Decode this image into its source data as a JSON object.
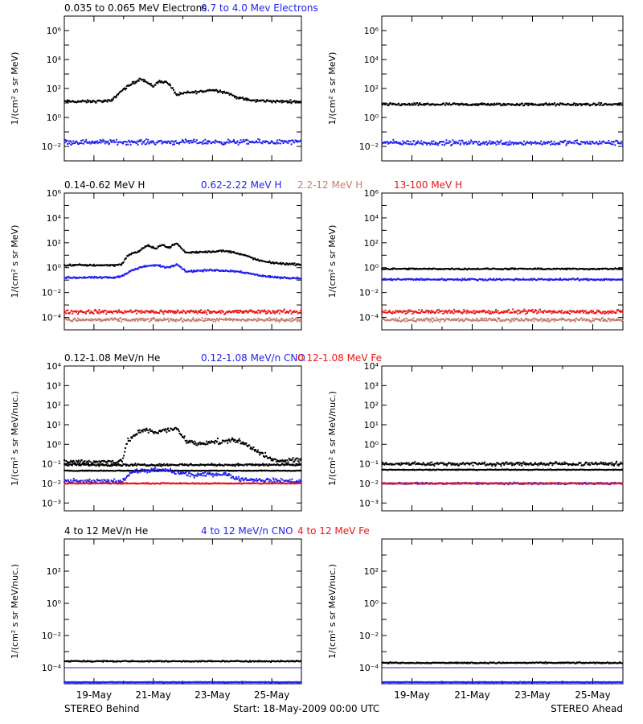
{
  "colors": {
    "black": "#000000",
    "blue": "#1f1ff0",
    "red": "#e81818",
    "tan": "#c08070"
  },
  "figure": {
    "left_footer": "STEREO Behind",
    "center_footer": "Start: 18-May-2009 00:00 UTC",
    "right_footer": "STEREO Ahead",
    "x_ticks": [
      "19-May",
      "21-May",
      "23-May",
      "25-May"
    ]
  },
  "chart_data": [
    {
      "type": "scatter",
      "row": 0,
      "side": "behind",
      "ylabel": "1/(cm² s sr MeV)",
      "y_scale": "log",
      "ylim_exp": [
        -3,
        7
      ],
      "y_tick_labels": [
        "10⁻²",
        "10⁰",
        "10²",
        "10⁴",
        "10⁶"
      ],
      "y_tick_exps": [
        -2,
        0,
        2,
        4,
        6
      ],
      "legend": [
        {
          "label": "0.035 to 0.065 MeV Electrons",
          "color": "#000000"
        },
        {
          "label": "0.7 to 4.0 Mev Electrons",
          "color": "#1f1ff0"
        }
      ],
      "series": [
        {
          "color": "#000000",
          "x": [
            0,
            0.9,
            1.6,
            1.9,
            2.3,
            2.6,
            2.8,
            3.0,
            3.2,
            3.5,
            3.8,
            4.1,
            4.4,
            4.7,
            4.9,
            5.2,
            5.5,
            5.8,
            6.1,
            6.4,
            6.8,
            7.2,
            7.6,
            8.0
          ],
          "log_y": [
            1.1,
            1.1,
            1.15,
            1.8,
            2.35,
            2.7,
            2.4,
            2.15,
            2.5,
            2.4,
            1.55,
            1.7,
            1.75,
            1.8,
            1.9,
            1.85,
            1.7,
            1.4,
            1.25,
            1.15,
            1.15,
            1.1,
            1.1,
            1.1
          ],
          "noise": 0.1
        },
        {
          "color": "#1f1ff0",
          "x": [
            0,
            8
          ],
          "log_y": [
            -1.7,
            -1.7
          ],
          "noise": 0.18
        }
      ]
    },
    {
      "type": "scatter",
      "row": 0,
      "side": "ahead",
      "ylabel": "1/(cm² s sr MeV)",
      "y_scale": "log",
      "ylim_exp": [
        -3,
        7
      ],
      "y_tick_labels": [
        "10⁻²",
        "10⁰",
        "10²",
        "10⁴",
        "10⁶"
      ],
      "y_tick_exps": [
        -2,
        0,
        2,
        4,
        6
      ],
      "legend": [],
      "series": [
        {
          "color": "#000000",
          "x": [
            0,
            8
          ],
          "log_y": [
            0.9,
            0.9
          ],
          "noise": 0.1
        },
        {
          "color": "#1f1ff0",
          "x": [
            0,
            8
          ],
          "log_y": [
            -1.75,
            -1.75
          ],
          "noise": 0.18
        }
      ]
    },
    {
      "type": "scatter",
      "row": 1,
      "side": "behind",
      "ylabel": "1/(cm² s sr MeV)",
      "y_scale": "log",
      "ylim_exp": [
        -5,
        6
      ],
      "y_tick_labels": [
        "10⁻⁴",
        "10⁻²",
        "10⁰",
        "10²",
        "10⁴",
        "10⁶"
      ],
      "y_tick_exps": [
        -4,
        -2,
        0,
        2,
        4,
        6
      ],
      "legend": [
        {
          "label": "0.14-0.62 MeV H",
          "color": "#000000"
        },
        {
          "label": "0.62-2.22 MeV H",
          "color": "#1f1ff0"
        },
        {
          "label": "2.2-12 MeV H",
          "color": "#c08070"
        },
        {
          "label": "13-100 MeV H",
          "color": "#e81818"
        }
      ],
      "series": [
        {
          "color": "#000000",
          "x": [
            0,
            1.7,
            1.95,
            2.15,
            2.5,
            2.8,
            3.1,
            3.3,
            3.5,
            3.8,
            4.1,
            5.0,
            5.4,
            5.8,
            6.2,
            6.6,
            7.0,
            7.5,
            8.0
          ],
          "log_y": [
            0.2,
            0.2,
            0.3,
            1.0,
            1.3,
            1.8,
            1.5,
            1.9,
            1.6,
            1.95,
            1.2,
            1.3,
            1.35,
            1.2,
            0.9,
            0.55,
            0.4,
            0.3,
            0.25
          ],
          "noise": 0.08
        },
        {
          "color": "#1f1ff0",
          "x": [
            0,
            1.7,
            2.0,
            2.3,
            2.7,
            3.1,
            3.5,
            3.8,
            4.1,
            5.0,
            5.5,
            5.9,
            6.3,
            6.8,
            7.3,
            8.0
          ],
          "log_y": [
            -0.8,
            -0.8,
            -0.6,
            -0.2,
            0.1,
            0.2,
            0.0,
            0.3,
            -0.3,
            -0.2,
            -0.25,
            -0.3,
            -0.5,
            -0.7,
            -0.8,
            -0.85
          ],
          "noise": 0.08
        },
        {
          "color": "#c08070",
          "x": [
            0,
            8
          ],
          "log_y": [
            -4.2,
            -4.2
          ],
          "noise": 0.15
        },
        {
          "color": "#e81818",
          "x": [
            0,
            8
          ],
          "log_y": [
            -3.55,
            -3.55
          ],
          "noise": 0.18
        }
      ]
    },
    {
      "type": "scatter",
      "row": 1,
      "side": "ahead",
      "ylabel": "1/(cm² s sr MeV)",
      "y_scale": "log",
      "ylim_exp": [
        -5,
        6
      ],
      "y_tick_labels": [
        "10⁻⁴",
        "10⁻²",
        "10⁰",
        "10²",
        "10⁴",
        "10⁶"
      ],
      "y_tick_exps": [
        -4,
        -2,
        0,
        2,
        4,
        6
      ],
      "legend": [],
      "series": [
        {
          "color": "#000000",
          "x": [
            0,
            8
          ],
          "log_y": [
            -0.1,
            -0.1
          ],
          "noise": 0.06
        },
        {
          "color": "#1f1ff0",
          "x": [
            0,
            8
          ],
          "log_y": [
            -0.95,
            -0.95
          ],
          "noise": 0.08
        },
        {
          "color": "#c08070",
          "x": [
            0,
            8
          ],
          "log_y": [
            -4.2,
            -4.2
          ],
          "noise": 0.15
        },
        {
          "color": "#e81818",
          "x": [
            0,
            8
          ],
          "log_y": [
            -3.55,
            -3.55
          ],
          "noise": 0.18
        }
      ]
    },
    {
      "type": "scatter",
      "row": 2,
      "side": "behind",
      "ylabel": "1/(cm² s sr MeV/nuc.)",
      "y_scale": "log",
      "ylim_exp": [
        -3.4,
        4
      ],
      "y_tick_labels": [
        "10⁻³",
        "10⁻²",
        "10⁻¹",
        "10⁰",
        "10¹",
        "10²",
        "10³",
        "10⁴"
      ],
      "y_tick_exps": [
        -3,
        -2,
        -1,
        0,
        1,
        2,
        3,
        4
      ],
      "legend": [
        {
          "label": "0.12-1.08 MeV/n He",
          "color": "#000000"
        },
        {
          "label": "0.12-1.08 MeV/n CNO",
          "color": "#1f1ff0"
        },
        {
          "label": "0.12-1.08 MeV Fe",
          "color": "#e81818"
        }
      ],
      "series": [
        {
          "color": "#000000",
          "x": [
            0,
            1.7,
            1.95,
            2.15,
            2.5,
            2.8,
            3.1,
            3.4,
            3.8,
            4.1,
            4.5,
            4.9,
            5.3,
            5.7,
            6.1,
            6.5,
            6.9,
            7.3,
            7.6,
            8.0
          ],
          "log_y": [
            -0.9,
            -0.9,
            -0.8,
            0.2,
            0.6,
            0.75,
            0.6,
            0.7,
            0.8,
            0.2,
            0.0,
            0.15,
            0.1,
            0.25,
            0.0,
            -0.3,
            -0.75,
            -0.9,
            -0.8,
            -0.8
          ],
          "noise": 0.14
        },
        {
          "color": "#000000",
          "x": [
            0,
            8
          ],
          "log_y": [
            -1.35,
            -1.35
          ],
          "noise": 0.02
        },
        {
          "color": "#000000",
          "x": [
            0,
            8
          ],
          "log_y": [
            -1.05,
            -1.05
          ],
          "noise": 0.06
        },
        {
          "color": "#1f1ff0",
          "x": [
            0,
            1.9,
            2.3,
            3.3,
            3.8,
            4.5,
            5.0,
            5.5,
            6.0,
            8.0
          ],
          "log_y": [
            -1.9,
            -1.9,
            -1.4,
            -1.3,
            -1.45,
            -1.6,
            -1.5,
            -1.55,
            -1.8,
            -1.9
          ],
          "noise": 0.12
        },
        {
          "color": "#e81818",
          "x": [
            0,
            8
          ],
          "log_y": [
            -2.0,
            -2.0
          ],
          "noise": 0.03
        }
      ]
    },
    {
      "type": "scatter",
      "row": 2,
      "side": "ahead",
      "ylabel": "1/(cm² s sr MeV/nuc.)",
      "y_scale": "log",
      "ylim_exp": [
        -3.4,
        4
      ],
      "y_tick_labels": [
        "10⁻³",
        "10⁻²",
        "10⁻¹",
        "10⁰",
        "10¹",
        "10²",
        "10³",
        "10⁴"
      ],
      "y_tick_exps": [
        -3,
        -2,
        -1,
        0,
        1,
        2,
        3,
        4
      ],
      "legend": [],
      "series": [
        {
          "color": "#000000",
          "x": [
            0,
            8
          ],
          "log_y": [
            -1.3,
            -1.3
          ],
          "noise": 0.02
        },
        {
          "color": "#000000",
          "x": [
            0,
            8
          ],
          "log_y": [
            -1.0,
            -1.0
          ],
          "noise": 0.1
        },
        {
          "color": "#1f1ff0",
          "x": [
            0,
            8
          ],
          "log_y": [
            -2.0,
            -2.0
          ],
          "noise": 0.05
        },
        {
          "color": "#e81818",
          "x": [
            0,
            8
          ],
          "log_y": [
            -2.0,
            -2.0
          ],
          "noise": 0.03
        }
      ]
    },
    {
      "type": "scatter",
      "row": 3,
      "side": "behind",
      "ylabel": "1/(cm² s sr MeV/nuc.)",
      "y_scale": "log",
      "ylim_exp": [
        -5,
        4
      ],
      "y_tick_labels": [
        "10⁻⁴",
        "10⁻²",
        "10⁰",
        "10²"
      ],
      "y_tick_exps": [
        -4,
        -2,
        0,
        2
      ],
      "legend": [
        {
          "label": "4 to 12 MeV/n He",
          "color": "#000000"
        },
        {
          "label": "4 to 12 MeV/n CNO",
          "color": "#1f1ff0"
        },
        {
          "label": "4 to 12 MeV Fe",
          "color": "#e81818"
        }
      ],
      "series": [
        {
          "color": "#000000",
          "x": [
            0,
            8
          ],
          "log_y": [
            -3.6,
            -3.6
          ],
          "noise": 0.04
        },
        {
          "color": "#1f1ff0",
          "x": [
            0,
            8
          ],
          "log_y": [
            -4.0,
            -4.0
          ],
          "noise": 0.0
        },
        {
          "color": "#1f1ff0",
          "x": [
            0,
            8
          ],
          "log_y": [
            -4.9,
            -4.9
          ],
          "noise": 0.02
        }
      ]
    },
    {
      "type": "scatter",
      "row": 3,
      "side": "ahead",
      "ylabel": "1/(cm² s sr MeV/nuc.)",
      "y_scale": "log",
      "ylim_exp": [
        -5,
        4
      ],
      "y_tick_labels": [
        "10⁻⁴",
        "10⁻²",
        "10⁰",
        "10²"
      ],
      "y_tick_exps": [
        -4,
        -2,
        0,
        2
      ],
      "legend": [],
      "series": [
        {
          "color": "#000000",
          "x": [
            0,
            8
          ],
          "log_y": [
            -3.7,
            -3.7
          ],
          "noise": 0.04
        },
        {
          "color": "#1f1ff0",
          "x": [
            0,
            8
          ],
          "log_y": [
            -4.0,
            -4.0
          ],
          "noise": 0.0
        },
        {
          "color": "#1f1ff0",
          "x": [
            0,
            8
          ],
          "log_y": [
            -4.9,
            -4.9
          ],
          "noise": 0.02
        }
      ]
    }
  ]
}
